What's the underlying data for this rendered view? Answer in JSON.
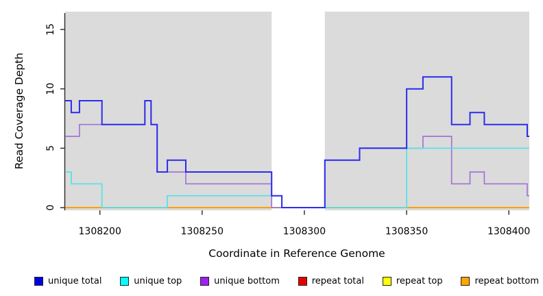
{
  "legend": {
    "items": [
      {
        "label": "unique total",
        "color": "#0000E6"
      },
      {
        "label": "unique top",
        "color": "#00FFFF"
      },
      {
        "label": "unique bottom",
        "color": "#A020F0"
      },
      {
        "label": "repeat total",
        "color": "#E60000"
      },
      {
        "label": "repeat top",
        "color": "#FFFF00"
      },
      {
        "label": "repeat bottom",
        "color": "#FFA500"
      }
    ]
  },
  "chart_data": {
    "type": "line",
    "step": true,
    "xlabel": "Coordinate in Reference Genome",
    "ylabel": "Read Coverage Depth",
    "xlim": [
      1308183,
      1308410
    ],
    "ylim": [
      0,
      16.5
    ],
    "xticks": [
      1308200,
      1308250,
      1308300,
      1308350,
      1308400
    ],
    "yticks": [
      0,
      5,
      10,
      15
    ],
    "plot_background": "#DBDBDB",
    "grid": false,
    "legend_position": "bottom",
    "missing_data_region": {
      "from": 1308284,
      "to": 1308310
    },
    "series": [
      {
        "name": "repeat total",
        "color": "#E60000",
        "width": 1.6,
        "points": [
          [
            1308183,
            0
          ]
        ]
      },
      {
        "name": "repeat top",
        "color": "#FFFF00",
        "width": 1.6,
        "points": [
          [
            1308183,
            0
          ]
        ]
      },
      {
        "name": "repeat bottom",
        "color": "#FF9D00",
        "width": 2,
        "points": [
          [
            1308183,
            0
          ]
        ]
      },
      {
        "name": "unique bottom",
        "color": "#A472D8",
        "width": 1.7,
        "points": [
          [
            1308183,
            6
          ],
          [
            1308190,
            7
          ],
          [
            1308222,
            9
          ],
          [
            1308225,
            7
          ],
          [
            1308228,
            3
          ],
          [
            1308242,
            2
          ],
          [
            1308284,
            0
          ],
          [
            1308310,
            4
          ],
          [
            1308327,
            5
          ],
          [
            1308358,
            6
          ],
          [
            1308372,
            2
          ],
          [
            1308381,
            3
          ],
          [
            1308388,
            2
          ],
          [
            1308409,
            1
          ]
        ]
      },
      {
        "name": "unique top",
        "color": "#4FE3E8",
        "width": 1.7,
        "points": [
          [
            1308183,
            3
          ],
          [
            1308186,
            2
          ],
          [
            1308201,
            0
          ],
          [
            1308233,
            1
          ],
          [
            1308289,
            0
          ],
          [
            1308350,
            5
          ]
        ]
      },
      {
        "name": "unique total",
        "color": "#2B2BEE",
        "width": 2,
        "points": [
          [
            1308183,
            9
          ],
          [
            1308186,
            8
          ],
          [
            1308190,
            9
          ],
          [
            1308201,
            7
          ],
          [
            1308222,
            9
          ],
          [
            1308225,
            7
          ],
          [
            1308228,
            3
          ],
          [
            1308233,
            4
          ],
          [
            1308242,
            3
          ],
          [
            1308284,
            1
          ],
          [
            1308289,
            0
          ],
          [
            1308310,
            4
          ],
          [
            1308327,
            5
          ],
          [
            1308350,
            10
          ],
          [
            1308358,
            11
          ],
          [
            1308372,
            7
          ],
          [
            1308381,
            8
          ],
          [
            1308388,
            7
          ],
          [
            1308409,
            6
          ]
        ]
      }
    ]
  }
}
